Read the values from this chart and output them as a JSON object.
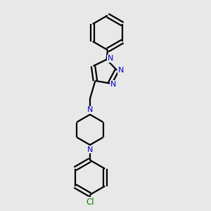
{
  "bg_color": "#e8e8e8",
  "bond_color": "#000000",
  "nitrogen_color": "#0000cc",
  "chlorine_color": "#008000",
  "line_width": 1.6,
  "figsize": [
    3.0,
    3.0
  ],
  "dpi": 100,
  "xlim": [
    0,
    10
  ],
  "ylim": [
    0,
    10
  ]
}
